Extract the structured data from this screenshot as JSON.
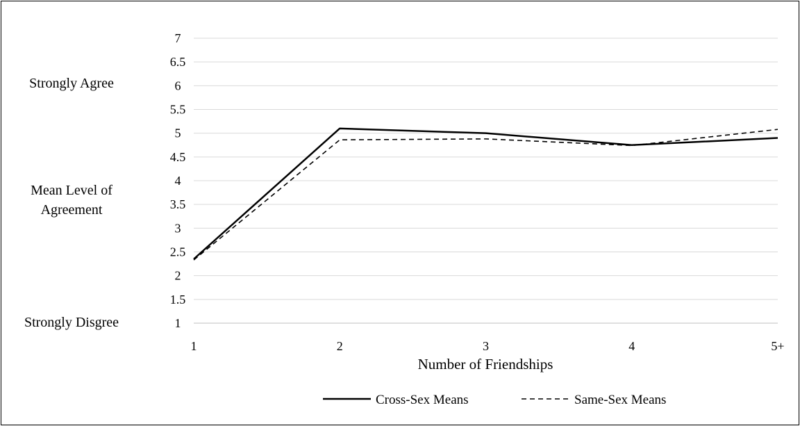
{
  "chart_data": {
    "type": "line",
    "title": "",
    "xlabel": "Number of Friendships",
    "ylabel": "Mean Level of Agreement",
    "ylabel_lines": [
      "Mean Level of",
      "Agreement"
    ],
    "categories": [
      "1",
      "2",
      "3",
      "4",
      "5+"
    ],
    "ylim": [
      1,
      7
    ],
    "yticks": [
      "1",
      "1.5",
      "2",
      "2.5",
      "3",
      "3.5",
      "4",
      "4.5",
      "5",
      "5.5",
      "6",
      "6.5",
      "7"
    ],
    "annotations": {
      "top": "Strongly Agree",
      "bottom": "Strongly Disgree"
    },
    "grid": "horizontal",
    "legend_position": "bottom",
    "series": [
      {
        "name": "Cross-Sex Means",
        "values": [
          2.35,
          5.1,
          5.0,
          4.75,
          4.9
        ],
        "style": "solid",
        "color": "#000000"
      },
      {
        "name": "Same-Sex Means",
        "values": [
          2.33,
          4.86,
          4.88,
          4.74,
          5.08
        ],
        "style": "dashed",
        "color": "#000000"
      }
    ]
  }
}
